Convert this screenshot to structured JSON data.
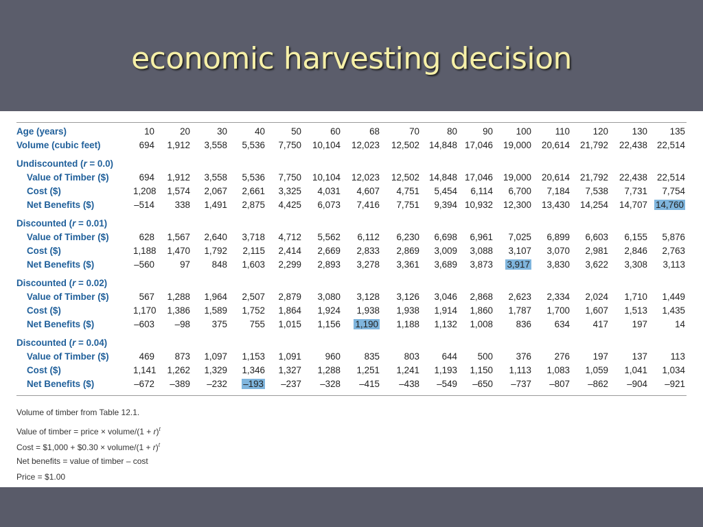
{
  "slide": {
    "title": "economic harvesting decision"
  },
  "table": {
    "header_rows": [
      {
        "label": "Age (years)",
        "values": [
          "10",
          "20",
          "30",
          "40",
          "50",
          "60",
          "68",
          "70",
          "80",
          "90",
          "100",
          "110",
          "120",
          "130",
          "135"
        ]
      },
      {
        "label": "Volume (cubic feet)",
        "values": [
          "694",
          "1,912",
          "3,558",
          "5,536",
          "7,750",
          "10,104",
          "12,023",
          "12,502",
          "14,848",
          "17,046",
          "19,000",
          "20,614",
          "21,792",
          "22,438",
          "22,514"
        ]
      }
    ],
    "sections": [
      {
        "title_prefix": "Undiscounted (",
        "title_var": "r",
        "title_suffix": " = 0.0)",
        "rows": [
          {
            "label": "Value of Timber ($)",
            "values": [
              "694",
              "1,912",
              "3,558",
              "5,536",
              "7,750",
              "10,104",
              "12,023",
              "12,502",
              "14,848",
              "17,046",
              "19,000",
              "20,614",
              "21,792",
              "22,438",
              "22,514"
            ]
          },
          {
            "label": "Cost ($)",
            "values": [
              "1,208",
              "1,574",
              "2,067",
              "2,661",
              "3,325",
              "4,031",
              "4,607",
              "4,751",
              "5,454",
              "6,114",
              "6,700",
              "7,184",
              "7,538",
              "7,731",
              "7,754"
            ]
          },
          {
            "label": "Net Benefits ($)",
            "values": [
              "–514",
              "338",
              "1,491",
              "2,875",
              "4,425",
              "6,073",
              "7,416",
              "7,751",
              "9,394",
              "10,932",
              "12,300",
              "13,430",
              "14,254",
              "14,707",
              "14,760"
            ],
            "highlight_index": 14
          }
        ]
      },
      {
        "title_prefix": "Discounted (",
        "title_var": "r",
        "title_suffix": " = 0.01)",
        "rows": [
          {
            "label": "Value of Timber ($)",
            "values": [
              "628",
              "1,567",
              "2,640",
              "3,718",
              "4,712",
              "5,562",
              "6,112",
              "6,230",
              "6,698",
              "6,961",
              "7,025",
              "6,899",
              "6,603",
              "6,155",
              "5,876"
            ]
          },
          {
            "label": "Cost ($)",
            "values": [
              "1,188",
              "1,470",
              "1,792",
              "2,115",
              "2,414",
              "2,669",
              "2,833",
              "2,869",
              "3,009",
              "3,088",
              "3,107",
              "3,070",
              "2,981",
              "2,846",
              "2,763"
            ]
          },
          {
            "label": "Net Benefits ($)",
            "values": [
              "–560",
              "97",
              "848",
              "1,603",
              "2,299",
              "2,893",
              "3,278",
              "3,361",
              "3,689",
              "3,873",
              "3,917",
              "3,830",
              "3,622",
              "3,308",
              "3,113"
            ],
            "highlight_index": 10
          }
        ]
      },
      {
        "title_prefix": "Discounted (",
        "title_var": "r",
        "title_suffix": " = 0.02)",
        "rows": [
          {
            "label": "Value of Timber ($)",
            "values": [
              "567",
              "1,288",
              "1,964",
              "2,507",
              "2,879",
              "3,080",
              "3,128",
              "3,126",
              "3,046",
              "2,868",
              "2,623",
              "2,334",
              "2,024",
              "1,710",
              "1,449"
            ]
          },
          {
            "label": "Cost ($)",
            "values": [
              "1,170",
              "1,386",
              "1,589",
              "1,752",
              "1,864",
              "1,924",
              "1,938",
              "1,938",
              "1,914",
              "1,860",
              "1,787",
              "1,700",
              "1,607",
              "1,513",
              "1,435"
            ]
          },
          {
            "label": "Net Benefits ($)",
            "values": [
              "–603",
              "–98",
              "375",
              "755",
              "1,015",
              "1,156",
              "1,190",
              "1,188",
              "1,132",
              "1,008",
              "836",
              "634",
              "417",
              "197",
              "14"
            ],
            "highlight_index": 6
          }
        ]
      },
      {
        "title_prefix": "Discounted (",
        "title_var": "r",
        "title_suffix": " = 0.04)",
        "rows": [
          {
            "label": "Value of Timber ($)",
            "values": [
              "469",
              "873",
              "1,097",
              "1,153",
              "1,091",
              "960",
              "835",
              "803",
              "644",
              "500",
              "376",
              "276",
              "197",
              "137",
              "113"
            ]
          },
          {
            "label": "Cost ($)",
            "values": [
              "1,141",
              "1,262",
              "1,329",
              "1,346",
              "1,327",
              "1,288",
              "1,251",
              "1,241",
              "1,193",
              "1,150",
              "1,113",
              "1,083",
              "1,059",
              "1,041",
              "1,034"
            ]
          },
          {
            "label": "Net Benefits ($)",
            "values": [
              "–672",
              "–389",
              "–232",
              "–193",
              "–237",
              "–328",
              "–415",
              "–438",
              "–549",
              "–650",
              "–737",
              "–807",
              "–862",
              "–904",
              "–921"
            ],
            "highlight_index": 3
          }
        ]
      }
    ]
  },
  "notes": {
    "volume": "Volume of timber from Table 12.1.",
    "value_prefix": "Value of timber = price × volume/(1 + ",
    "value_var": "r",
    "value_close": ")",
    "value_exp": "t",
    "cost_prefix": "Cost = $1,000 + $0.30 × volume/(1 + ",
    "cost_var": "r",
    "cost_close": ")",
    "cost_exp": "t",
    "net": "Net benefits = value of timber – cost",
    "price": "Price = $1.00"
  },
  "colors": {
    "title": "#f6f0a8",
    "frame": "#5b5d6b",
    "label_blue": "#1f5f9a",
    "highlight": "#7fb5dd"
  }
}
